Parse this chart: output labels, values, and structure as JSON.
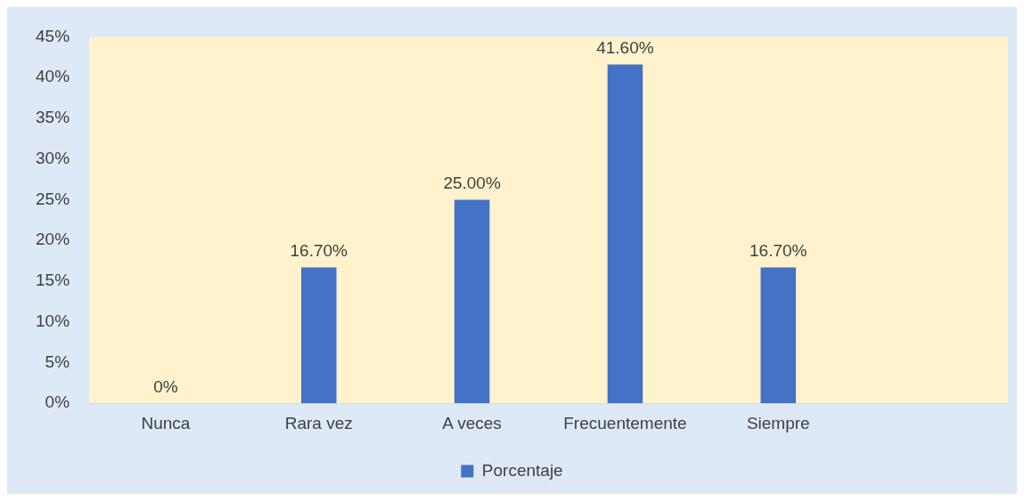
{
  "chart_data": {
    "type": "bar",
    "categories": [
      "Nunca",
      "Rara vez",
      "A veces",
      "Frecuentemente",
      "Siempre",
      null
    ],
    "series": [
      {
        "name": "Porcentaje",
        "color": "#4472c4",
        "values": [
          0,
          16.7,
          25,
          41.6,
          16.7,
          null
        ],
        "value_labels": [
          "0%",
          "16.70%",
          "25.00%",
          "41.60%",
          "16.70%",
          null
        ]
      }
    ],
    "ylim": [
      0,
      45
    ],
    "yticks": [
      {
        "value": 0,
        "label": "0%"
      },
      {
        "value": 5,
        "label": "5%"
      },
      {
        "value": 10,
        "label": "10%"
      },
      {
        "value": 15,
        "label": "15%"
      },
      {
        "value": 20,
        "label": "20%"
      },
      {
        "value": 25,
        "label": "25%"
      },
      {
        "value": 30,
        "label": "30%"
      },
      {
        "value": 35,
        "label": "35%"
      },
      {
        "value": 40,
        "label": "40%"
      },
      {
        "value": 45,
        "label": "45%"
      }
    ],
    "grid": false,
    "legend": "bottom"
  }
}
